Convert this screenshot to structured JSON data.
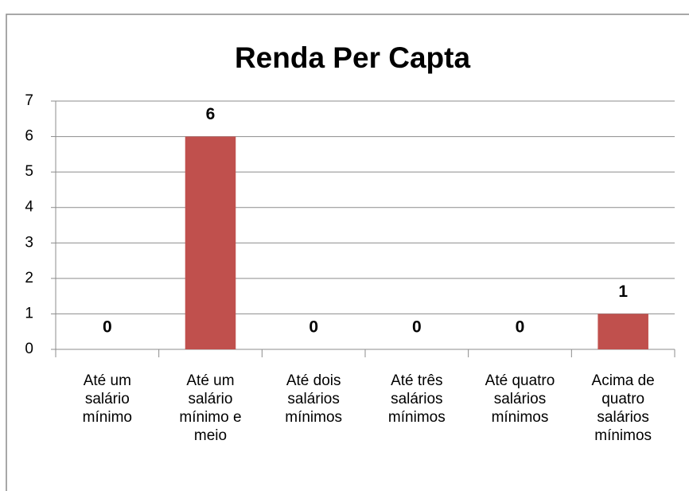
{
  "chart_data": {
    "type": "bar",
    "title": "Renda Per Capta",
    "categories": [
      "Até um salário mínimo",
      "Até um salário mínimo e meio",
      "Até dois salários mínimos",
      "Até três salários mínimos",
      "Até quatro salários mínimos",
      "Acima de quatro salários mínimos"
    ],
    "values": [
      0,
      6,
      0,
      0,
      0,
      1
    ],
    "color": "#c0504d",
    "ylim": [
      0,
      7
    ],
    "yticks": [
      0,
      1,
      2,
      3,
      4,
      5,
      6,
      7
    ],
    "grid": true
  }
}
